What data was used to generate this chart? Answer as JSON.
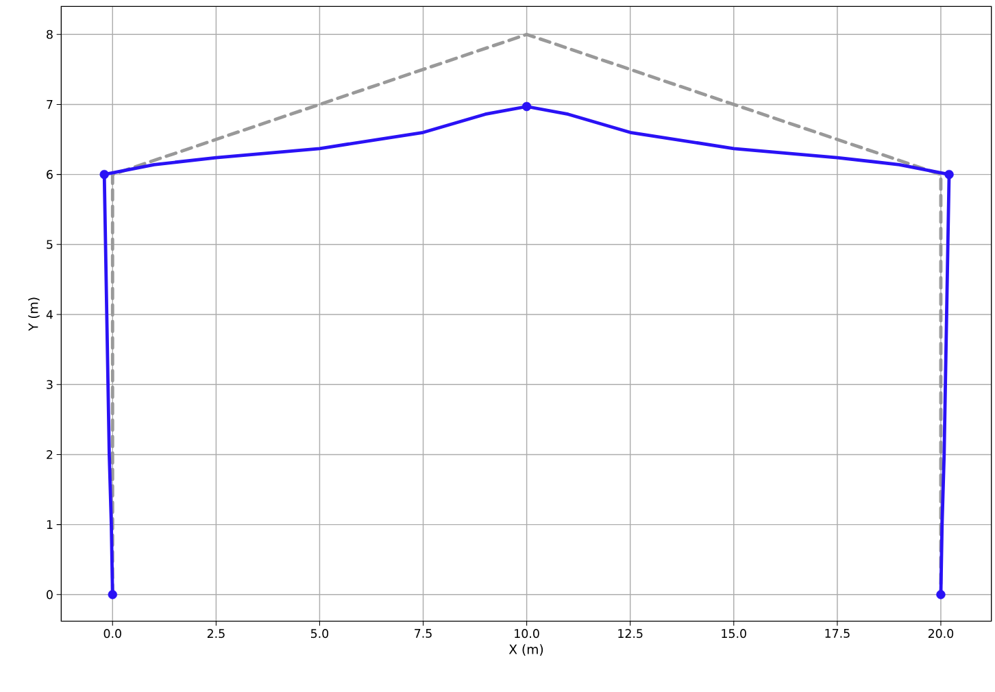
{
  "chart_data": {
    "type": "line",
    "xlabel": "X (m)",
    "ylabel": "Y (m)",
    "xlim": [
      -1.24,
      21.22
    ],
    "ylim": [
      -0.38,
      8.4
    ],
    "xticks": [
      {
        "value": 0,
        "label": "0.0"
      },
      {
        "value": 2.5,
        "label": "2.5"
      },
      {
        "value": 5,
        "label": "5.0"
      },
      {
        "value": 7.5,
        "label": "7.5"
      },
      {
        "value": 10,
        "label": "10.0"
      },
      {
        "value": 12.5,
        "label": "12.5"
      },
      {
        "value": 15,
        "label": "15.0"
      },
      {
        "value": 17.5,
        "label": "17.5"
      },
      {
        "value": 20,
        "label": "20.0"
      }
    ],
    "yticks": [
      0,
      1,
      2,
      3,
      4,
      5,
      6,
      7,
      8
    ],
    "grid": true,
    "series": [
      {
        "color": "#999999",
        "line_style": "dashed",
        "marker": "none",
        "x": [
          0,
          0,
          10,
          20,
          20
        ],
        "values": [
          0,
          6,
          8,
          6,
          0
        ]
      },
      {
        "color": "#2a12f5",
        "line_style": "solid",
        "marker": "none",
        "x": [
          0,
          -0.03,
          -0.08,
          -0.11,
          -0.14,
          -0.17,
          -0.2,
          1,
          2.5,
          5,
          7.5,
          9,
          10,
          11,
          12.5,
          15,
          17.5,
          19,
          20.2,
          20.17,
          20.14,
          20.11,
          20.08,
          20.03,
          20
        ],
        "values": [
          0,
          1,
          2,
          3,
          4,
          5,
          6,
          6.14,
          6.24,
          6.37,
          6.6,
          6.86,
          6.97,
          6.86,
          6.6,
          6.37,
          6.24,
          6.14,
          6,
          5,
          4,
          3,
          2,
          1,
          0
        ]
      },
      {
        "type": "scatter",
        "color": "#2a12f5",
        "marker": "circle",
        "x": [
          0,
          -0.2,
          10,
          20.2,
          20
        ],
        "values": [
          0,
          6,
          6.97,
          6,
          0
        ]
      }
    ]
  }
}
